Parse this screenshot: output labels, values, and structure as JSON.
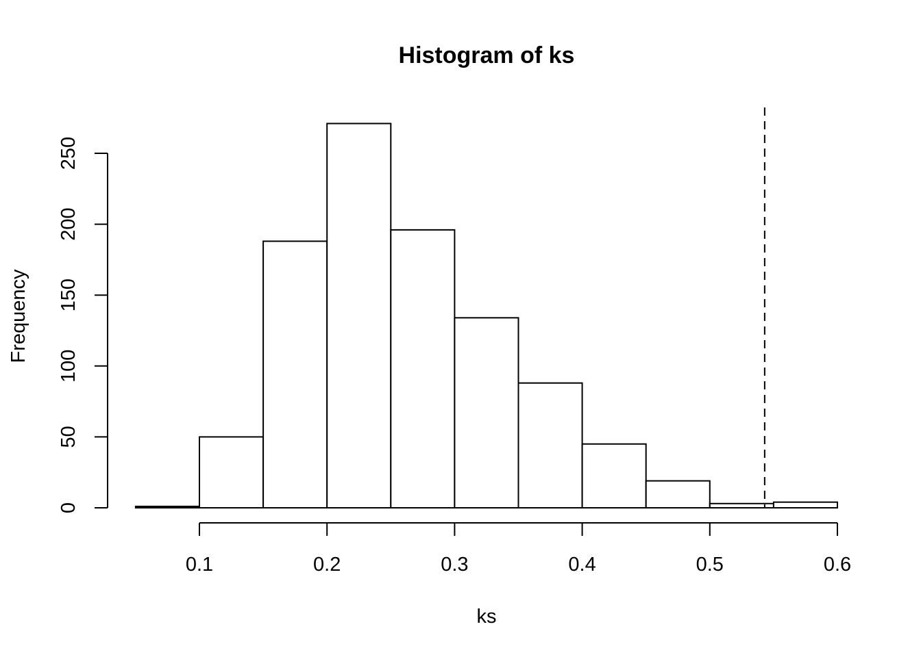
{
  "chart_data": {
    "type": "bar",
    "title": "Histogram of ks",
    "xlabel": "ks",
    "ylabel": "Frequency",
    "bins": [
      {
        "start": 0.05,
        "end": 0.1,
        "count": 1
      },
      {
        "start": 0.1,
        "end": 0.15,
        "count": 50
      },
      {
        "start": 0.15,
        "end": 0.2,
        "count": 188
      },
      {
        "start": 0.2,
        "end": 0.25,
        "count": 271
      },
      {
        "start": 0.25,
        "end": 0.3,
        "count": 196
      },
      {
        "start": 0.3,
        "end": 0.35,
        "count": 134
      },
      {
        "start": 0.35,
        "end": 0.4,
        "count": 88
      },
      {
        "start": 0.4,
        "end": 0.45,
        "count": 45
      },
      {
        "start": 0.45,
        "end": 0.5,
        "count": 19
      },
      {
        "start": 0.5,
        "end": 0.55,
        "count": 3
      },
      {
        "start": 0.55,
        "end": 0.6,
        "count": 4
      }
    ],
    "xticks": [
      0.1,
      0.2,
      0.3,
      0.4,
      0.5,
      0.6
    ],
    "xtick_labels": [
      "0.1",
      "0.2",
      "0.3",
      "0.4",
      "0.5",
      "0.6"
    ],
    "yticks": [
      0,
      50,
      100,
      150,
      200,
      250
    ],
    "ytick_labels": [
      "0",
      "50",
      "100",
      "150",
      "200",
      "250"
    ],
    "xlim": [
      0.05,
      0.6
    ],
    "ylim": [
      0,
      271
    ],
    "reference_line": {
      "x": 0.543,
      "style": "dashed"
    },
    "grid": false,
    "colors": {
      "bar_fill": "#ffffff",
      "bar_stroke": "#000000"
    }
  }
}
